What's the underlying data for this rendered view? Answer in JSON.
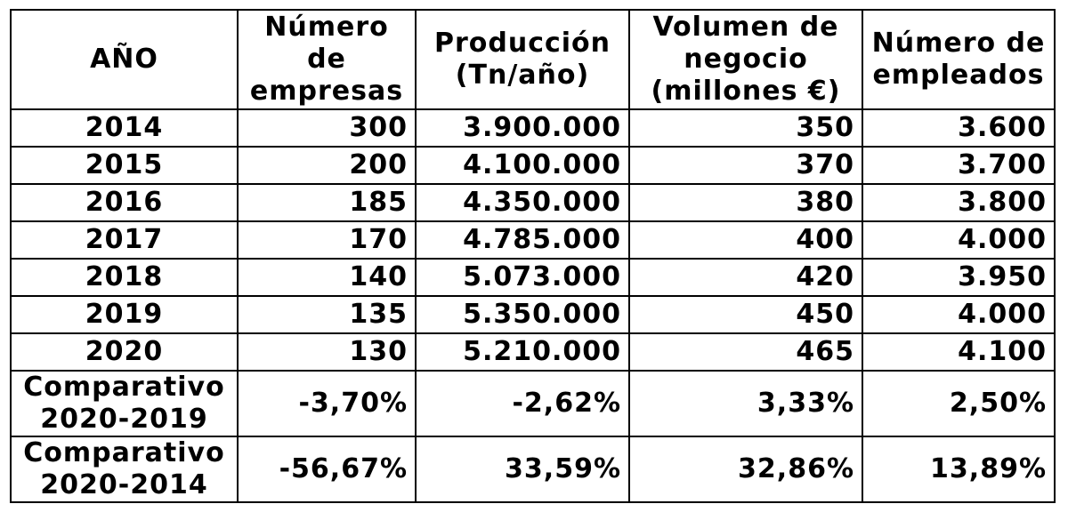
{
  "table": {
    "headers": [
      [
        "AÑO"
      ],
      [
        "Número",
        "de",
        "empresas"
      ],
      [
        "Producción",
        "(Tn/año)"
      ],
      [
        "Volumen de",
        "negocio",
        "(millones €)"
      ],
      [
        "Número de",
        "empleados"
      ]
    ],
    "rows": [
      {
        "year": "2014",
        "empresas": "300",
        "produccion": "3.900.000",
        "volumen": "350",
        "empleados": "3.600"
      },
      {
        "year": "2015",
        "empresas": "200",
        "produccion": "4.100.000",
        "volumen": "370",
        "empleados": "3.700"
      },
      {
        "year": "2016",
        "empresas": "185",
        "produccion": "4.350.000",
        "volumen": "380",
        "empleados": "3.800"
      },
      {
        "year": "2017",
        "empresas": "170",
        "produccion": "4.785.000",
        "volumen": "400",
        "empleados": "4.000"
      },
      {
        "year": "2018",
        "empresas": "140",
        "produccion": "5.073.000",
        "volumen": "420",
        "empleados": "3.950"
      },
      {
        "year": "2019",
        "empresas": "135",
        "produccion": "5.350.000",
        "volumen": "450",
        "empleados": "4.000"
      },
      {
        "year": "2020",
        "empresas": "130",
        "produccion": "5.210.000",
        "volumen": "465",
        "empleados": "4.100"
      }
    ],
    "comparisons": [
      {
        "label": [
          "Comparativo",
          "2020-2019"
        ],
        "empresas": "-3,70%",
        "produccion": "-2,62%",
        "volumen": "3,33%",
        "empleados": "2,50%"
      },
      {
        "label": [
          "Comparativo",
          "2020-2014"
        ],
        "empresas": "-56,67%",
        "produccion": "33,59%",
        "volumen": "32,86%",
        "empleados": "13,89%"
      }
    ]
  }
}
